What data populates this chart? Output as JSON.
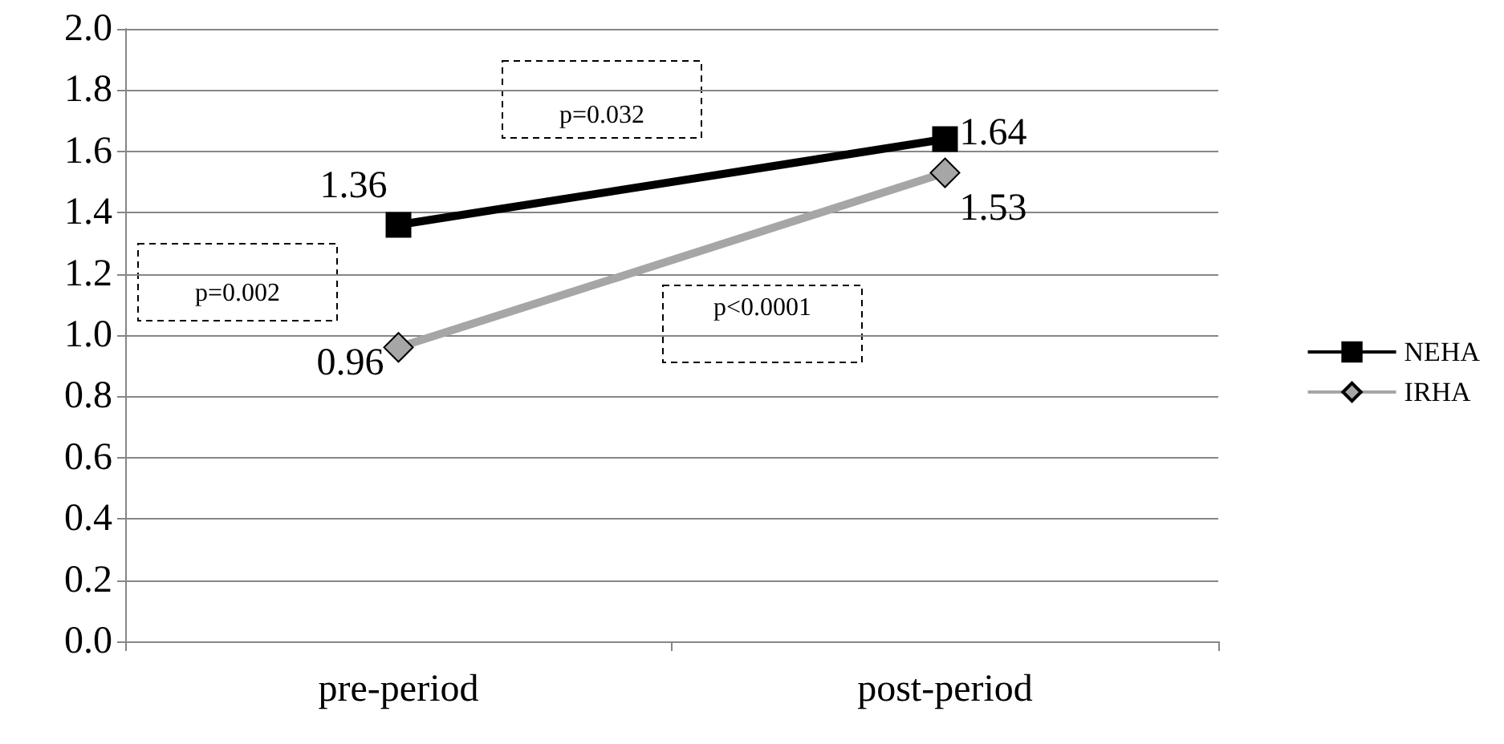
{
  "chart_data": {
    "type": "line",
    "categories": [
      "pre-period",
      "post-period"
    ],
    "series": [
      {
        "name": "NEHA",
        "color": "#000000",
        "marker": "square",
        "values": [
          1.36,
          1.64
        ]
      },
      {
        "name": "IRHA",
        "color": "#a6a6a6",
        "marker": "diamond",
        "values": [
          0.96,
          1.53
        ]
      }
    ],
    "ylim": [
      0,
      2
    ],
    "yticks": [
      {
        "value": 0,
        "label": "0.0"
      },
      {
        "value": 0.2,
        "label": "0.2"
      },
      {
        "value": 0.4,
        "label": "0.4"
      },
      {
        "value": 0.6,
        "label": "0.6"
      },
      {
        "value": 0.8,
        "label": "0.8"
      },
      {
        "value": 1,
        "label": "1.0"
      },
      {
        "value": 1.2,
        "label": "1.2"
      },
      {
        "value": 1.4,
        "label": "1.4"
      },
      {
        "value": 1.6,
        "label": "1.6"
      },
      {
        "value": 1.8,
        "label": "1.8"
      },
      {
        "value": 2,
        "label": "2.0"
      }
    ],
    "grid": "y",
    "legend": "right",
    "data_labels": true,
    "annotations": [
      "p=0.002",
      "p=0.032",
      "p<0.0001"
    ]
  }
}
